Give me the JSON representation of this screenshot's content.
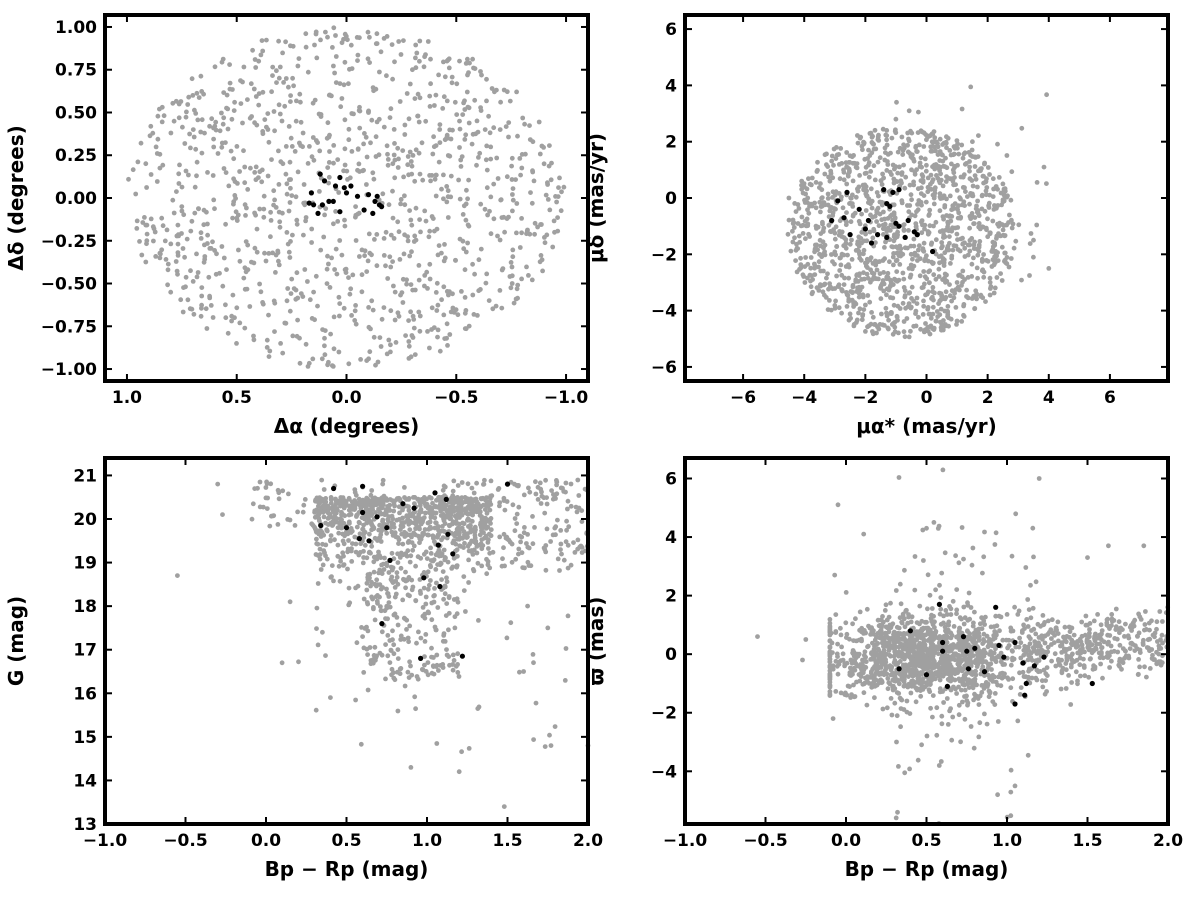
{
  "figure": {
    "panel_count": 4,
    "gray_color": "#a0a0a0",
    "black_color": "#000000"
  },
  "chart_data": [
    {
      "type": "scatter",
      "xlabel": "Δα (degrees)",
      "ylabel": "Δδ (degrees)",
      "xlim": [
        1.1,
        -1.1
      ],
      "ylim": [
        -1.07,
        1.07
      ],
      "xticks": [
        1.0,
        0.5,
        0.0,
        -0.5,
        -1.0
      ],
      "xtick_labels": [
        "1.0",
        "0.5",
        "0.0",
        "−0.5",
        "−1.0"
      ],
      "yticks": [
        -1.0,
        -0.75,
        -0.5,
        -0.25,
        0.0,
        0.25,
        0.5,
        0.75,
        1.0
      ],
      "ytick_labels": [
        "−1.00",
        "−0.75",
        "−0.50",
        "−0.25",
        "0.00",
        "0.25",
        "0.50",
        "0.75",
        "1.00"
      ],
      "series": [
        {
          "style": "gray",
          "distribution": "uniform disk",
          "radius": 1.0,
          "points": [
            [
              0.6,
              0.42
            ],
            [
              -0.3,
              0.75
            ],
            [
              0.15,
              -0.55
            ],
            [
              -0.72,
              -0.2
            ],
            [
              0.85,
              -0.35
            ],
            [
              0.4,
              0.8
            ],
            [
              -0.55,
              0.62
            ],
            [
              0.05,
              0.95
            ],
            [
              -0.9,
              0.2
            ],
            [
              0.7,
              0.6
            ],
            [
              -0.2,
              -0.9
            ],
            [
              0.3,
              -0.85
            ],
            [
              -0.65,
              -0.6
            ],
            [
              0.55,
              -0.7
            ],
            [
              -0.4,
              0.3
            ],
            [
              0.2,
              0.3
            ],
            [
              -0.1,
              0.5
            ],
            [
              0.45,
              0.05
            ],
            [
              -0.45,
              -0.35
            ],
            [
              0.75,
              -0.05
            ]
          ]
        },
        {
          "style": "black",
          "points": [
            [
              0.12,
              0.14
            ],
            [
              0.1,
              0.1
            ],
            [
              0.16,
              0.03
            ],
            [
              0.08,
              -0.02
            ],
            [
              0.05,
              0.07
            ],
            [
              0.03,
              0.12
            ],
            [
              0.01,
              0.06
            ],
            [
              0.0,
              0.03
            ],
            [
              -0.02,
              0.07
            ],
            [
              -0.05,
              0.01
            ],
            [
              0.15,
              -0.04
            ],
            [
              0.11,
              -0.04
            ],
            [
              0.13,
              -0.09
            ],
            [
              0.17,
              -0.03
            ],
            [
              0.06,
              -0.02
            ],
            [
              -0.1,
              0.02
            ],
            [
              -0.08,
              -0.07
            ],
            [
              -0.12,
              -0.09
            ],
            [
              -0.14,
              0.01
            ],
            [
              -0.13,
              -0.02
            ],
            [
              -0.16,
              -0.05
            ],
            [
              -0.15,
              -0.04
            ],
            [
              0.03,
              -0.08
            ]
          ]
        }
      ]
    },
    {
      "type": "scatter",
      "xlabel": "μα* (mas/yr)",
      "ylabel": "μδ (mas/yr)",
      "xlim": [
        -7.9,
        7.9
      ],
      "ylim": [
        -6.5,
        6.5
      ],
      "xticks": [
        -6,
        -4,
        -2,
        0,
        2,
        4,
        6
      ],
      "xtick_labels": [
        "−6",
        "−4",
        "−2",
        "0",
        "2",
        "4",
        "6"
      ],
      "yticks": [
        -6,
        -4,
        -2,
        0,
        2,
        4,
        6
      ],
      "ytick_labels": [
        "−6",
        "−4",
        "−2",
        "0",
        "2",
        "4",
        "6"
      ],
      "series": [
        {
          "style": "gray",
          "distribution": "disk centered (-0.8,-1.2), radius ~3.7",
          "points": [
            [
              -2.5,
              1.5
            ],
            [
              1.0,
              -3.0
            ],
            [
              -3.5,
              -2.0
            ],
            [
              2.5,
              0.5
            ],
            [
              -1.0,
              2.8
            ],
            [
              0.5,
              -4.5
            ],
            [
              -4.5,
              0.0
            ],
            [
              3.5,
              -1.5
            ],
            [
              -2.0,
              -3.8
            ],
            [
              1.5,
              2.0
            ],
            [
              4.0,
              -2.5
            ],
            [
              -0.5,
              -2.0
            ]
          ]
        },
        {
          "style": "black",
          "points": [
            [
              -1.4,
              0.3
            ],
            [
              -1.1,
              0.2
            ],
            [
              -0.9,
              0.3
            ],
            [
              -1.3,
              -0.2
            ],
            [
              -1.2,
              -0.3
            ],
            [
              -2.2,
              -0.4
            ],
            [
              -2.9,
              -0.1
            ],
            [
              -2.6,
              0.2
            ],
            [
              -3.1,
              -0.8
            ],
            [
              -2.7,
              -0.7
            ],
            [
              -2.5,
              -1.3
            ],
            [
              -1.9,
              -0.8
            ],
            [
              -1.6,
              -1.3
            ],
            [
              -1.8,
              -1.6
            ],
            [
              -1.3,
              -1.4
            ],
            [
              -0.9,
              -1.0
            ],
            [
              -0.7,
              -1.4
            ],
            [
              -0.4,
              -1.2
            ],
            [
              -0.3,
              -1.3
            ],
            [
              -0.6,
              -0.8
            ],
            [
              0.2,
              -1.9
            ],
            [
              -1.0,
              -0.9
            ],
            [
              -2.0,
              -1.1
            ]
          ]
        }
      ]
    },
    {
      "type": "scatter",
      "xlabel": "Bp − Rp (mag)",
      "ylabel": "G (mag)",
      "xlim": [
        -1.0,
        2.0
      ],
      "ylim": [
        13.0,
        21.4
      ],
      "xticks": [
        -1.0,
        -0.5,
        0.0,
        0.5,
        1.0,
        1.5,
        2.0
      ],
      "xtick_labels": [
        "−1.0",
        "−0.5",
        "0.0",
        "0.5",
        "1.0",
        "1.5",
        "2.0"
      ],
      "yticks": [
        13,
        14,
        15,
        16,
        17,
        18,
        19,
        20,
        21
      ],
      "ytick_labels": [
        "13",
        "14",
        "15",
        "16",
        "17",
        "18",
        "19",
        "20",
        "21"
      ],
      "series": [
        {
          "style": "gray",
          "distribution": "dense cluster G 19.5–21 at Bp−Rp 0.3–1.4, tail to fainter",
          "points": [
            [
              -0.3,
              20.8
            ],
            [
              -0.27,
              20.1
            ],
            [
              -0.55,
              18.7
            ],
            [
              0.1,
              16.7
            ],
            [
              0.15,
              18.1
            ],
            [
              0.35,
              17.4
            ],
            [
              0.4,
              15.9
            ],
            [
              0.6,
              17.3
            ],
            [
              0.9,
              14.3
            ],
            [
              1.2,
              14.2
            ],
            [
              1.48,
              13.4
            ],
            [
              1.77,
              14.8
            ],
            [
              2.0,
              14.8
            ],
            [
              1.6,
              16.5
            ],
            [
              1.75,
              17.5
            ]
          ]
        },
        {
          "style": "black",
          "points": [
            [
              0.42,
              20.7
            ],
            [
              0.6,
              20.75
            ],
            [
              1.05,
              20.6
            ],
            [
              1.12,
              20.45
            ],
            [
              1.5,
              20.8
            ],
            [
              0.85,
              20.35
            ],
            [
              0.92,
              20.25
            ],
            [
              0.6,
              20.15
            ],
            [
              0.69,
              20.05
            ],
            [
              0.34,
              19.85
            ],
            [
              0.5,
              19.8
            ],
            [
              0.75,
              19.8
            ],
            [
              0.58,
              19.55
            ],
            [
              0.64,
              19.5
            ],
            [
              1.07,
              19.4
            ],
            [
              1.13,
              19.65
            ],
            [
              1.16,
              19.2
            ],
            [
              0.77,
              19.05
            ],
            [
              0.98,
              18.65
            ],
            [
              1.08,
              18.45
            ],
            [
              0.72,
              17.6
            ],
            [
              0.96,
              16.8
            ],
            [
              1.22,
              16.85
            ]
          ]
        }
      ]
    },
    {
      "type": "scatter",
      "xlabel": "Bp − Rp (mag)",
      "ylabel": "ϖ (mas)",
      "xlim": [
        -1.0,
        2.0
      ],
      "ylim": [
        -5.8,
        6.7
      ],
      "xticks": [
        -1.0,
        -0.5,
        0.0,
        0.5,
        1.0,
        1.5,
        2.0
      ],
      "xtick_labels": [
        "−1.0",
        "−0.5",
        "0.0",
        "0.5",
        "1.0",
        "1.5",
        "2.0"
      ],
      "yticks": [
        -4,
        -2,
        0,
        2,
        4,
        6
      ],
      "ytick_labels": [
        "−4",
        "−2",
        "0",
        "2",
        "4",
        "6"
      ],
      "series": [
        {
          "style": "gray",
          "distribution": "dense band ϖ≈0 across Bp−Rp 0.2–2.0",
          "points": [
            [
              -0.55,
              0.6
            ],
            [
              -0.05,
              5.1
            ],
            [
              -0.07,
              2.7
            ],
            [
              0.11,
              4.1
            ],
            [
              -0.25,
              0.5
            ],
            [
              -0.27,
              -0.2
            ],
            [
              -0.08,
              -2.2
            ],
            [
              0.32,
              -5.4
            ],
            [
              1.2,
              6.0
            ],
            [
              1.05,
              -4.5
            ],
            [
              1.85,
              3.7
            ],
            [
              1.63,
              3.7
            ],
            [
              0.5,
              4.3
            ],
            [
              1.5,
              3.3
            ]
          ]
        },
        {
          "style": "black",
          "points": [
            [
              0.4,
              0.8
            ],
            [
              0.58,
              1.7
            ],
            [
              0.6,
              0.4
            ],
            [
              0.6,
              0.1
            ],
            [
              0.73,
              0.6
            ],
            [
              0.8,
              0.2
            ],
            [
              0.93,
              1.6
            ],
            [
              0.95,
              0.3
            ],
            [
              1.05,
              0.4
            ],
            [
              0.33,
              -0.5
            ],
            [
              0.5,
              -0.7
            ],
            [
              0.63,
              -1.1
            ],
            [
              0.76,
              -0.5
            ],
            [
              0.86,
              -0.6
            ],
            [
              1.05,
              -1.7
            ],
            [
              1.1,
              -0.3
            ],
            [
              1.12,
              -1.0
            ],
            [
              1.11,
              -1.4
            ],
            [
              1.17,
              -0.4
            ],
            [
              1.23,
              -0.1
            ],
            [
              1.53,
              -1.0
            ],
            [
              0.98,
              -0.1
            ],
            [
              0.75,
              0.1
            ]
          ]
        }
      ]
    }
  ]
}
